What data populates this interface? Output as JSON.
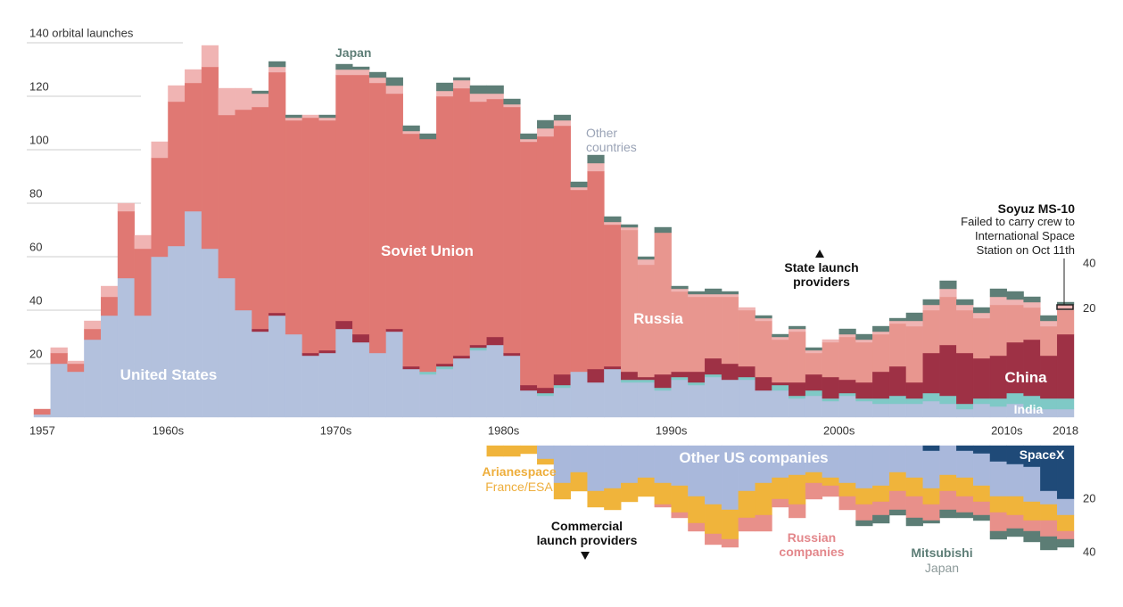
{
  "chart_data": [
    {
      "type": "stacked_bar",
      "x": [
        1957,
        1958,
        1959,
        1960,
        1961,
        1962,
        1963,
        1964,
        1965,
        1966,
        1967,
        1968,
        1969,
        1970,
        1971,
        1972,
        1973,
        1974,
        1975,
        1976,
        1977,
        1978,
        1979,
        1980,
        1981,
        1982,
        1983,
        1984,
        1985,
        1986,
        1987,
        1988,
        1989,
        1990,
        1991,
        1992,
        1993,
        1994,
        1995,
        1996,
        1997,
        1998,
        1999,
        2000,
        2001,
        2002,
        2003,
        2004,
        2005,
        2006,
        2007,
        2008,
        2009,
        2010,
        2011,
        2012,
        2013,
        2014,
        2015,
        2016,
        2017,
        2018
      ],
      "xlim": [
        1957,
        2019
      ],
      "xticks": [
        1957,
        {
          "value": 1965,
          "label": "1960s"
        },
        {
          "value": 1975,
          "label": "1970s"
        },
        {
          "value": 1985,
          "label": "1980s"
        },
        {
          "value": 1995,
          "label": "1990s"
        },
        {
          "value": 2005,
          "label": "2000s"
        },
        {
          "value": 2015,
          "label": "2010s"
        },
        2018
      ],
      "ylim": [
        0,
        140
      ],
      "yticks": [
        20,
        40,
        60,
        80,
        100,
        120,
        {
          "value": 140,
          "label": "140 orbital launches"
        }
      ],
      "y2lim": [
        -28.6,
        139.2
      ],
      "y2ticks": [
        40,
        20
      ],
      "series": [
        {
          "name": "United States",
          "color": "#b3c1dd",
          "values": [
            1,
            20,
            17,
            29,
            38,
            52,
            38,
            60,
            64,
            77,
            63,
            52,
            40,
            32,
            38,
            31,
            23,
            24,
            33,
            28,
            24,
            32,
            18,
            16,
            18,
            22,
            25,
            27,
            23,
            10,
            8,
            11,
            17,
            13,
            18,
            13,
            13,
            10,
            14,
            12,
            15,
            14,
            14,
            10,
            10,
            7,
            8,
            6,
            8,
            6,
            5,
            5,
            5,
            6,
            5,
            3,
            5,
            4,
            5,
            3,
            3,
            3
          ]
        },
        {
          "name": "India",
          "color": "#7fc9c6",
          "values": [
            0,
            0,
            0,
            0,
            0,
            0,
            0,
            0,
            0,
            0,
            0,
            0,
            0,
            0,
            0,
            0,
            0,
            0,
            0,
            0,
            0,
            0,
            0,
            1,
            1,
            0,
            1,
            0,
            0,
            0,
            1,
            1,
            0,
            0,
            0,
            1,
            1,
            1,
            1,
            1,
            1,
            0,
            1,
            0,
            2,
            1,
            2,
            1,
            1,
            1,
            2,
            3,
            2,
            3,
            3,
            2,
            2,
            3,
            4,
            5,
            4,
            4
          ]
        },
        {
          "name": "China",
          "color": "#9e3145",
          "values": [
            0,
            0,
            0,
            0,
            0,
            0,
            0,
            0,
            0,
            0,
            0,
            0,
            0,
            1,
            1,
            0,
            1,
            1,
            3,
            3,
            0,
            1,
            1,
            0,
            1,
            1,
            1,
            3,
            1,
            2,
            2,
            4,
            0,
            5,
            1,
            3,
            1,
            5,
            2,
            4,
            6,
            6,
            4,
            5,
            1,
            5,
            6,
            8,
            5,
            6,
            10,
            11,
            6,
            15,
            19,
            19,
            15,
            16,
            19,
            21,
            16,
            24
          ]
        },
        {
          "name": "Soviet Union",
          "color": "#e07873",
          "values": [
            2,
            4,
            3,
            4,
            7,
            25,
            25,
            37,
            54,
            48,
            68,
            61,
            75,
            83,
            90,
            80,
            88,
            86,
            92,
            97,
            101,
            88,
            87,
            87,
            100,
            100,
            91,
            89,
            92,
            91,
            94,
            93,
            68,
            74,
            53,
            0,
            0,
            0,
            0,
            0,
            0,
            0,
            0,
            0,
            0,
            0,
            0,
            0,
            0,
            0,
            0,
            0,
            0,
            0,
            0,
            0,
            0,
            0,
            0,
            0,
            0,
            0
          ]
        },
        {
          "name": "Russia",
          "color": "#e8968f",
          "values": [
            0,
            0,
            0,
            0,
            0,
            0,
            0,
            0,
            0,
            0,
            0,
            0,
            0,
            0,
            0,
            0,
            0,
            0,
            0,
            0,
            0,
            0,
            0,
            0,
            0,
            0,
            0,
            0,
            0,
            0,
            0,
            0,
            0,
            0,
            0,
            53,
            42,
            53,
            30,
            28,
            23,
            25,
            21,
            21,
            16,
            19,
            8,
            13,
            16,
            15,
            14,
            16,
            21,
            16,
            18,
            16,
            15,
            19,
            14,
            12,
            11,
            9
          ]
        },
        {
          "name": "Other countries",
          "color": "#f0b4b3",
          "values": [
            0,
            2,
            1,
            3,
            4,
            3,
            5,
            6,
            6,
            5,
            8,
            10,
            8,
            5,
            2,
            1,
            1,
            1,
            2,
            2,
            2,
            3,
            1,
            0,
            2,
            3,
            3,
            2,
            1,
            1,
            3,
            2,
            1,
            3,
            1,
            1,
            2,
            0,
            1,
            1,
            1,
            1,
            1,
            1,
            1,
            1,
            1,
            1,
            1,
            1,
            1,
            1,
            2,
            2,
            3,
            2,
            2,
            3,
            2,
            2,
            2,
            2
          ]
        },
        {
          "name": "Japan",
          "color": "#5e7e77",
          "values": [
            0,
            0,
            0,
            0,
            0,
            0,
            0,
            0,
            0,
            0,
            0,
            0,
            0,
            1,
            2,
            1,
            0,
            1,
            2,
            1,
            2,
            3,
            2,
            2,
            3,
            1,
            3,
            3,
            2,
            2,
            3,
            2,
            2,
            3,
            2,
            1,
            1,
            2,
            1,
            1,
            2,
            1,
            0,
            1,
            1,
            1,
            1,
            0,
            2,
            2,
            2,
            1,
            3,
            2,
            3,
            2,
            2,
            3,
            3,
            2,
            2,
            1
          ]
        }
      ],
      "annotations": {
        "state": "State launch providers",
        "event_title": "Soyuz MS-10",
        "event_note": "Failed to carry crew to International Space Station on Oct 11th"
      }
    },
    {
      "type": "stacked_bar_down",
      "x": [
        1984,
        1985,
        1986,
        1987,
        1988,
        1989,
        1990,
        1991,
        1992,
        1993,
        1994,
        1995,
        1996,
        1997,
        1998,
        1999,
        2000,
        2001,
        2002,
        2003,
        2004,
        2005,
        2006,
        2007,
        2008,
        2009,
        2010,
        2011,
        2012,
        2013,
        2014,
        2015,
        2016,
        2017,
        2018
      ],
      "ylim": [
        0,
        60
      ],
      "yticks": [
        20,
        40
      ],
      "series": [
        {
          "name": "SpaceX",
          "color": "#1f4a78",
          "values": [
            0,
            0,
            0,
            0,
            0,
            0,
            0,
            0,
            0,
            0,
            0,
            0,
            0,
            0,
            0,
            0,
            0,
            0,
            0,
            0,
            0,
            0,
            0,
            0,
            0,
            0,
            2,
            0,
            2,
            3,
            6,
            7,
            8,
            17,
            20
          ]
        },
        {
          "name": "Other US companies",
          "color": "#a9b8db",
          "values": [
            0,
            0,
            0,
            5,
            14,
            10,
            17,
            16,
            14,
            12,
            14,
            15,
            19,
            22,
            24,
            17,
            14,
            12,
            11,
            10,
            12,
            14,
            16,
            15,
            10,
            12,
            14,
            11,
            10,
            12,
            13,
            12,
            13,
            5,
            6
          ]
        },
        {
          "name": "Arianespace",
          "color": "#f0b43b",
          "values": [
            4,
            4,
            3,
            2,
            6,
            7,
            6,
            8,
            7,
            7,
            8,
            10,
            10,
            11,
            11,
            10,
            12,
            8,
            11,
            4,
            3,
            5,
            6,
            6,
            7,
            7,
            6,
            6,
            7,
            6,
            6,
            7,
            7,
            6,
            6
          ]
        },
        {
          "name": "Russian companies",
          "color": "#e8908a",
          "values": [
            0,
            0,
            0,
            0,
            0,
            0,
            0,
            0,
            0,
            0,
            1,
            2,
            3,
            4,
            3,
            5,
            6,
            3,
            5,
            6,
            4,
            5,
            6,
            5,
            7,
            8,
            6,
            7,
            6,
            5,
            7,
            5,
            4,
            6,
            3
          ]
        },
        {
          "name": "Mitsubishi",
          "color": "#5c7d75",
          "values": [
            0,
            0,
            0,
            0,
            0,
            0,
            0,
            0,
            0,
            0,
            0,
            0,
            0,
            0,
            0,
            0,
            0,
            0,
            0,
            0,
            0,
            0,
            2,
            3,
            2,
            3,
            1,
            3,
            2,
            2,
            3,
            3,
            4,
            5,
            3
          ]
        }
      ],
      "annotations": {
        "providers": "Commercial launch providers",
        "ariane_origin": "France/ESA",
        "mitsubishi_origin": "Japan"
      }
    }
  ]
}
